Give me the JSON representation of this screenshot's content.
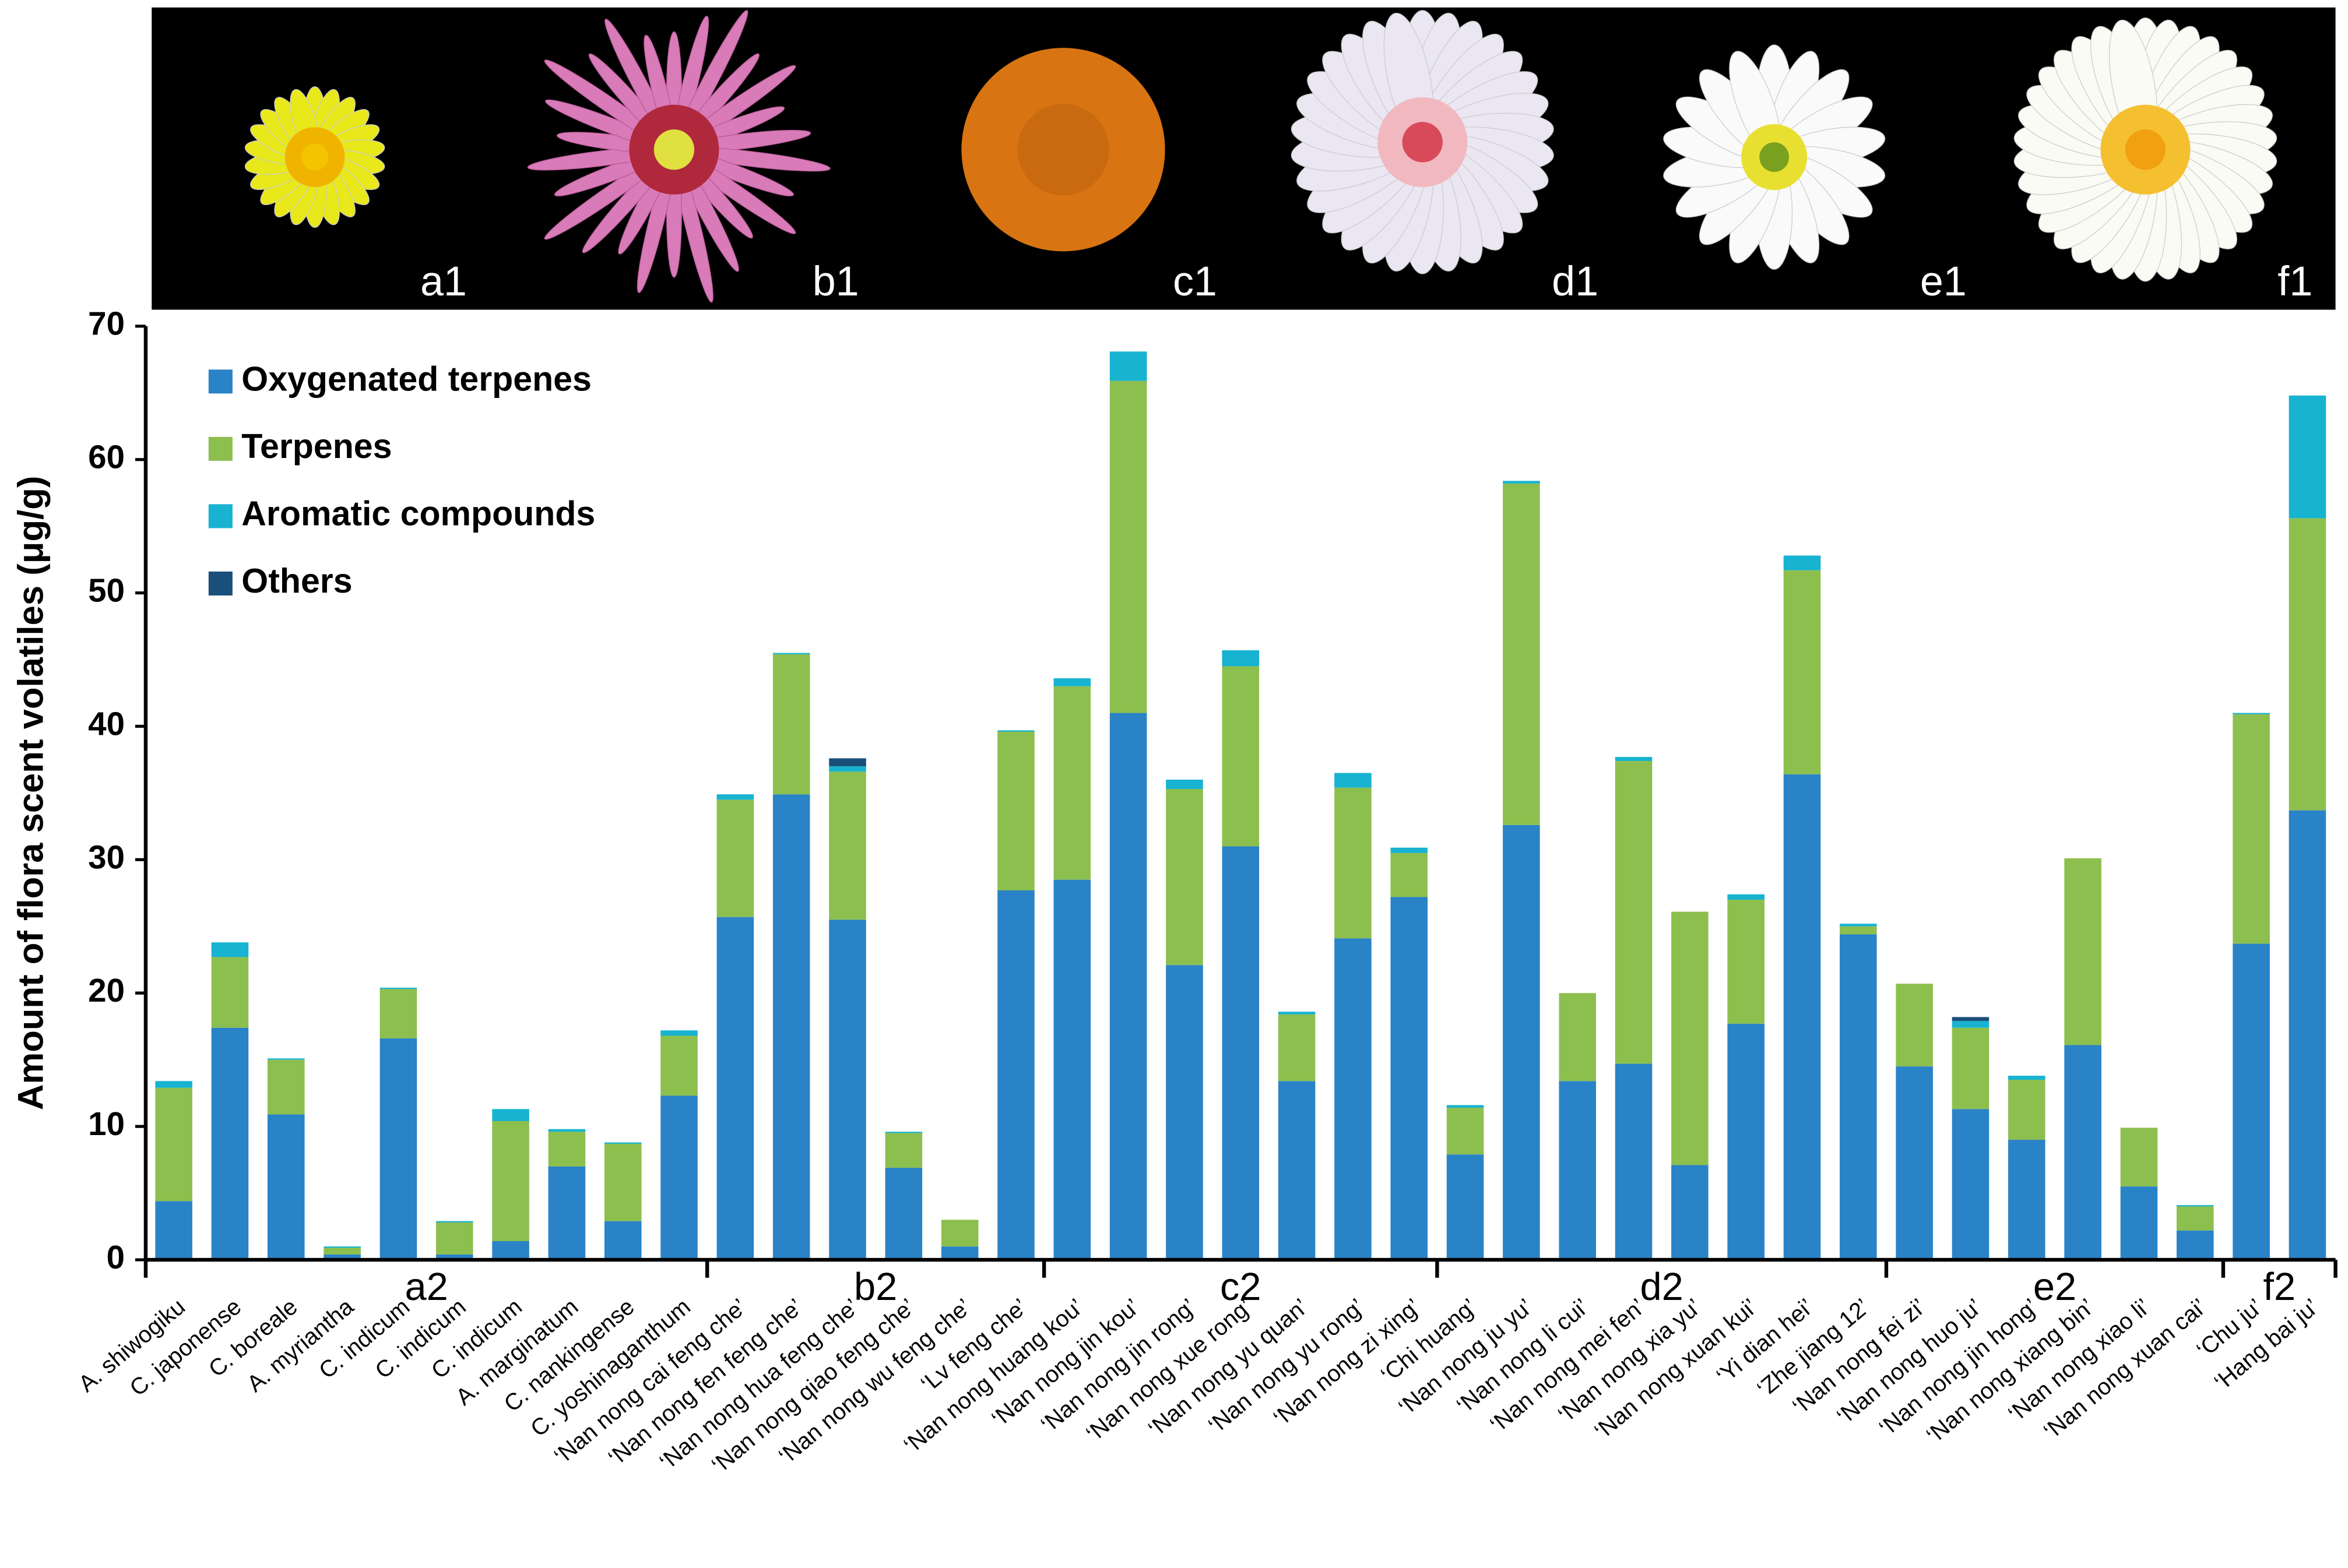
{
  "image_labels": [
    "a1",
    "b1",
    "c1",
    "d1",
    "e1",
    "f1"
  ],
  "chart_data": {
    "type": "stacked-bar",
    "y_label": "Amount of flora scent volatiles (μg/g)",
    "categories": [
      "A. shiwogiku",
      "C. japonense",
      "C. boreale",
      "A. myriantha",
      "C. indicum",
      "C. indicum",
      "C. indicum",
      "A. marginatum",
      "C. nankingense",
      "C. yoshinaganthum",
      "‘Nan nong cai feng che’",
      "‘Nan nong fen feng che’",
      "‘Nan nong hua feng che’",
      "‘Nan nong qiao feng che’",
      "‘Nan nong wu feng che’",
      "‘Lv feng che’",
      "‘Nan nong huang kou’",
      "‘Nan nong jin kou’",
      "‘Nan nong jin rong’",
      "‘Nan nong xue rong’",
      "‘Nan nong yu quan’",
      "‘Nan nong yu rong’",
      "‘Nan nong zi xing’",
      "‘Chi huang’",
      "‘Nan nong ju yu’",
      "‘Nan nong li cui’",
      "‘Nan nong mei fen’",
      "‘Nan nong xia yu’",
      "‘Nan nong xuan kui’",
      "‘Yi dian hei’",
      "‘Zhe jiang 12’",
      "‘Nan nong fei zi’",
      "‘Nan nong huo ju’",
      "‘Nan nong jin hong’",
      "‘Nan nong xiang bin’",
      "‘Nan nong xiao li’",
      "‘Nan nong xuan cai’",
      "‘Chu ju’",
      "‘Hang bai ju’"
    ],
    "groups": [
      {
        "label": "a2",
        "size": 10
      },
      {
        "label": "b2",
        "size": 6
      },
      {
        "label": "c2",
        "size": 7
      },
      {
        "label": "d2",
        "size": 8
      },
      {
        "label": "e2",
        "size": 6
      },
      {
        "label": "f2",
        "size": 2
      }
    ],
    "series": [
      {
        "name": "Oxygenated terpenes",
        "color": "#2a83c6",
        "values": [
          4.4,
          17.4,
          10.9,
          0.4,
          16.6,
          0.4,
          1.4,
          7.0,
          2.9,
          12.3,
          25.7,
          34.9,
          25.5,
          6.9,
          1.0,
          27.7,
          28.5,
          41.0,
          22.1,
          31.0,
          13.4,
          24.1,
          27.2,
          7.9,
          32.6,
          13.4,
          14.7,
          7.1,
          17.7,
          36.4,
          24.4,
          14.5,
          11.3,
          9.0,
          16.1,
          5.5,
          2.2,
          23.7,
          33.7
        ]
      },
      {
        "name": "Terpenes",
        "color": "#8dbf4f",
        "values": [
          8.5,
          5.3,
          4.1,
          0.5,
          3.7,
          2.4,
          9.0,
          2.6,
          5.8,
          4.5,
          8.8,
          10.5,
          11.1,
          2.6,
          2.0,
          11.9,
          14.5,
          24.9,
          13.2,
          13.5,
          5.0,
          11.3,
          3.3,
          3.5,
          25.6,
          6.6,
          22.7,
          19.0,
          9.3,
          15.3,
          0.6,
          6.2,
          6.1,
          4.5,
          14.0,
          4.4,
          1.8,
          17.2,
          21.9
        ]
      },
      {
        "name": "Aromatic compounds",
        "color": "#17b3d0",
        "values": [
          0.5,
          1.1,
          0.1,
          0.1,
          0.1,
          0.1,
          0.9,
          0.2,
          0.1,
          0.4,
          0.4,
          0.1,
          0.4,
          0.1,
          0,
          0.1,
          0.6,
          2.2,
          0.7,
          1.2,
          0.2,
          1.1,
          0.4,
          0.2,
          0.2,
          0,
          0.3,
          0,
          0.4,
          1.1,
          0.2,
          0,
          0.5,
          0.3,
          0,
          0,
          0.1,
          0.1,
          9.2
        ]
      },
      {
        "name": "Others",
        "color": "#1a4f7a",
        "values": [
          0,
          0,
          0,
          0,
          0,
          0,
          0,
          0,
          0,
          0,
          0,
          0,
          0.6,
          0,
          0,
          0,
          0,
          0,
          0,
          0,
          0,
          0,
          0,
          0,
          0,
          0,
          0,
          0,
          0,
          0,
          0,
          0,
          0.3,
          0,
          0,
          0,
          0,
          0,
          0
        ]
      }
    ],
    "ylim": [
      0,
      70
    ],
    "yticks": [
      0,
      10,
      20,
      30,
      40,
      50,
      60,
      70
    ],
    "legend": "top-left"
  }
}
